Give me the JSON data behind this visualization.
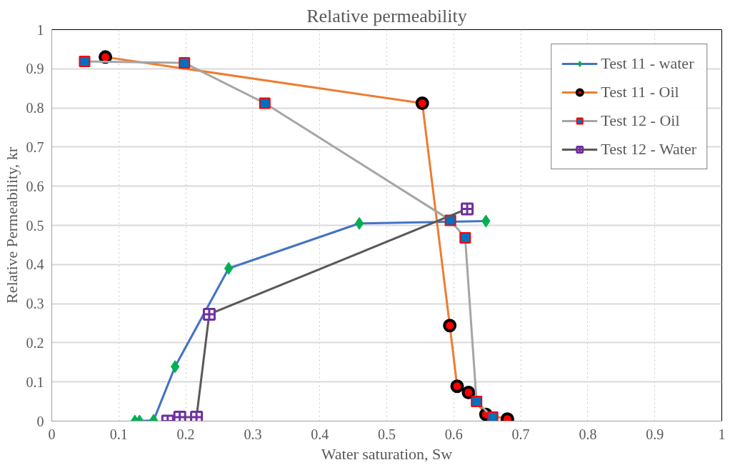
{
  "chart_data": {
    "type": "line",
    "title": "Relative permeability",
    "xlabel": "Water saturation, Sw",
    "ylabel": "Relative Permeability, kr",
    "xlim": [
      0,
      1
    ],
    "ylim": [
      0,
      1
    ],
    "xticks": [
      0,
      0.1,
      0.2,
      0.3,
      0.4,
      0.5,
      0.6,
      0.7,
      0.8,
      0.9,
      1
    ],
    "yticks": [
      0,
      0.1,
      0.2,
      0.3,
      0.4,
      0.5,
      0.6,
      0.7,
      0.8,
      0.9,
      1
    ],
    "grid": true,
    "legend": "top right",
    "line_style": "solid",
    "series": [
      {
        "name": "Test 11 - water",
        "color": "#4472c4",
        "marker": "diamond",
        "x": [
          0.124,
          0.131,
          0.152,
          0.184,
          0.264,
          0.459,
          0.648
        ],
        "values": [
          0.0,
          0.0,
          0.002,
          0.139,
          0.39,
          0.505,
          0.511
        ]
      },
      {
        "name": "Test 11 - Oil",
        "color": "#ed7d31",
        "marker": "circle",
        "x": [
          0.08,
          0.553,
          0.594,
          0.605,
          0.622,
          0.648,
          0.68
        ],
        "values": [
          0.93,
          0.812,
          0.244,
          0.089,
          0.073,
          0.017,
          0.005
        ]
      },
      {
        "name": "Test 12 - Oil",
        "color": "#a5a5a5",
        "marker": "square",
        "x": [
          0.049,
          0.198,
          0.318,
          0.595,
          0.617,
          0.634,
          0.658
        ],
        "values": [
          0.919,
          0.915,
          0.812,
          0.513,
          0.468,
          0.05,
          0.01
        ]
      },
      {
        "name": "Test 12 - Water",
        "color": "#595959",
        "marker": "cross",
        "x": [
          0.173,
          0.191,
          0.216,
          0.235,
          0.62
        ],
        "values": [
          0.0,
          0.01,
          0.01,
          0.273,
          0.542
        ]
      }
    ]
  }
}
